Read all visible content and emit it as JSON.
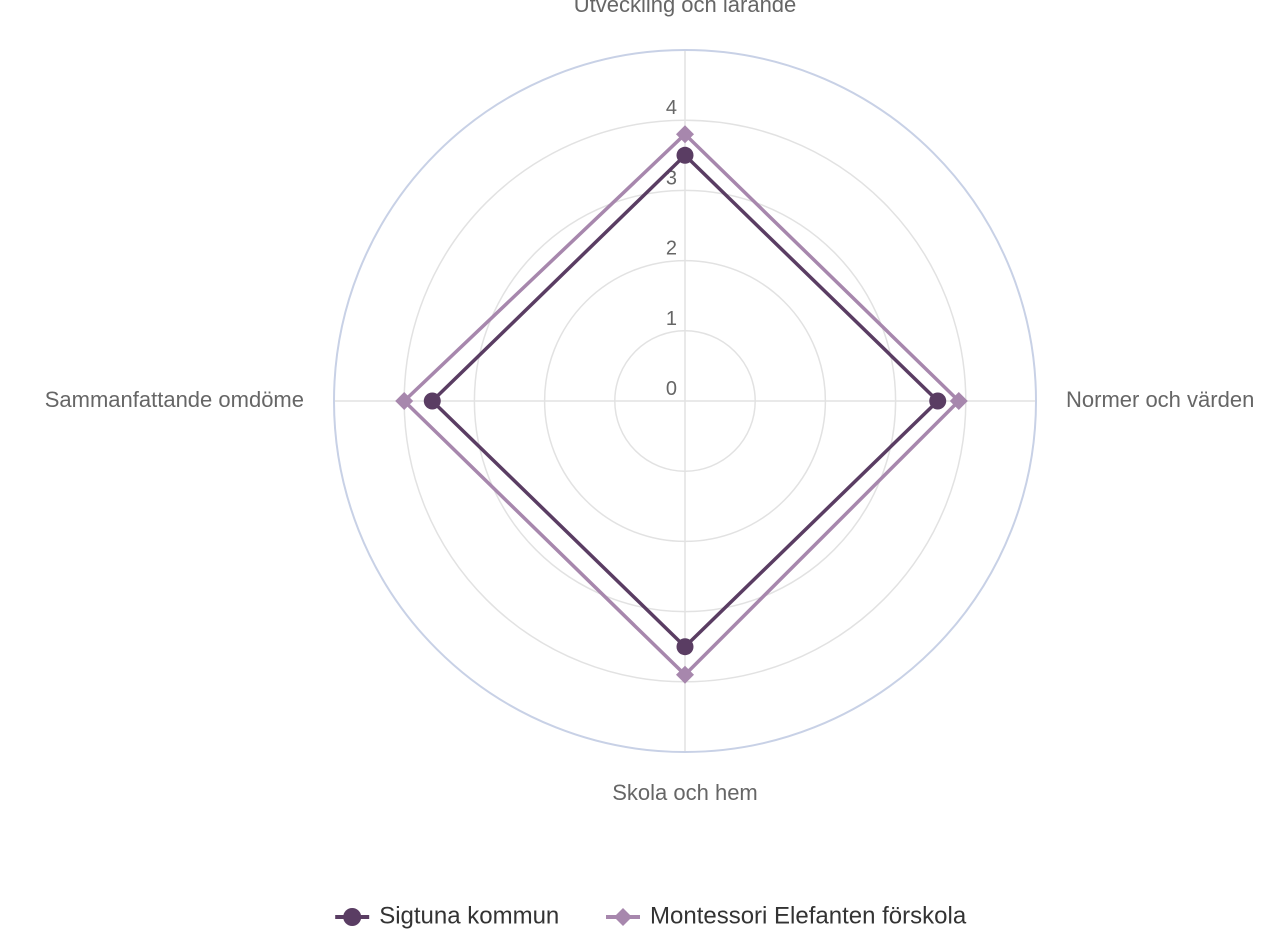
{
  "chart_data": {
    "type": "radar",
    "categories": [
      "Utveckling och lärande",
      "Normer och värden",
      "Skola och hem",
      "Sammanfattande omdöme"
    ],
    "rlim": [
      0,
      5
    ],
    "tick_values": [
      0,
      1,
      2,
      3,
      4
    ],
    "tick_labels": [
      "0",
      "1",
      "2",
      "3",
      "4"
    ],
    "grid": true,
    "legend_position": "bottom",
    "series": [
      {
        "name": "Sigtuna kommun",
        "values": [
          3.5,
          3.6,
          3.5,
          3.6
        ],
        "color": "#5a3d63",
        "marker": "circle"
      },
      {
        "name": "Montessori Elefanten förskola",
        "values": [
          3.8,
          3.9,
          3.9,
          4.0
        ],
        "color": "#a787ad",
        "marker": "diamond"
      }
    ],
    "colors": {
      "grid": "#e2e2e2",
      "outer_ring": "#c8d1e6",
      "label_text": "#666666"
    }
  }
}
